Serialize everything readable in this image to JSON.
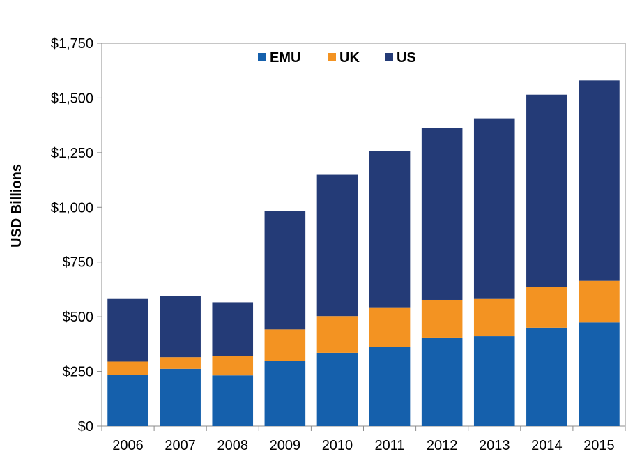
{
  "chart_data": {
    "type": "bar",
    "stacked": true,
    "title": "",
    "xlabel": "",
    "ylabel": "USD Billions",
    "ylim": [
      0,
      1750
    ],
    "yticks": [
      0,
      250,
      500,
      750,
      1000,
      1250,
      1500,
      1750
    ],
    "ytick_labels": [
      "$0",
      "$250",
      "$500",
      "$750",
      "$1,000",
      "$1,250",
      "$1,500",
      "$1,750"
    ],
    "grid": false,
    "legend_position": "top-center",
    "categories": [
      "2006",
      "2007",
      "2008",
      "2009",
      "2010",
      "2011",
      "2012",
      "2013",
      "2014",
      "2015"
    ],
    "series": [
      {
        "name": "EMU",
        "color": "#1560AC",
        "values": [
          235,
          262,
          232,
          297,
          335,
          363,
          405,
          411,
          450,
          474
        ]
      },
      {
        "name": "UK",
        "color": "#F39322",
        "values": [
          60,
          53,
          88,
          145,
          168,
          180,
          172,
          170,
          185,
          190
        ]
      },
      {
        "name": "US",
        "color": "#243B77",
        "values": [
          286,
          280,
          246,
          540,
          646,
          714,
          786,
          826,
          880,
          916
        ]
      }
    ]
  }
}
